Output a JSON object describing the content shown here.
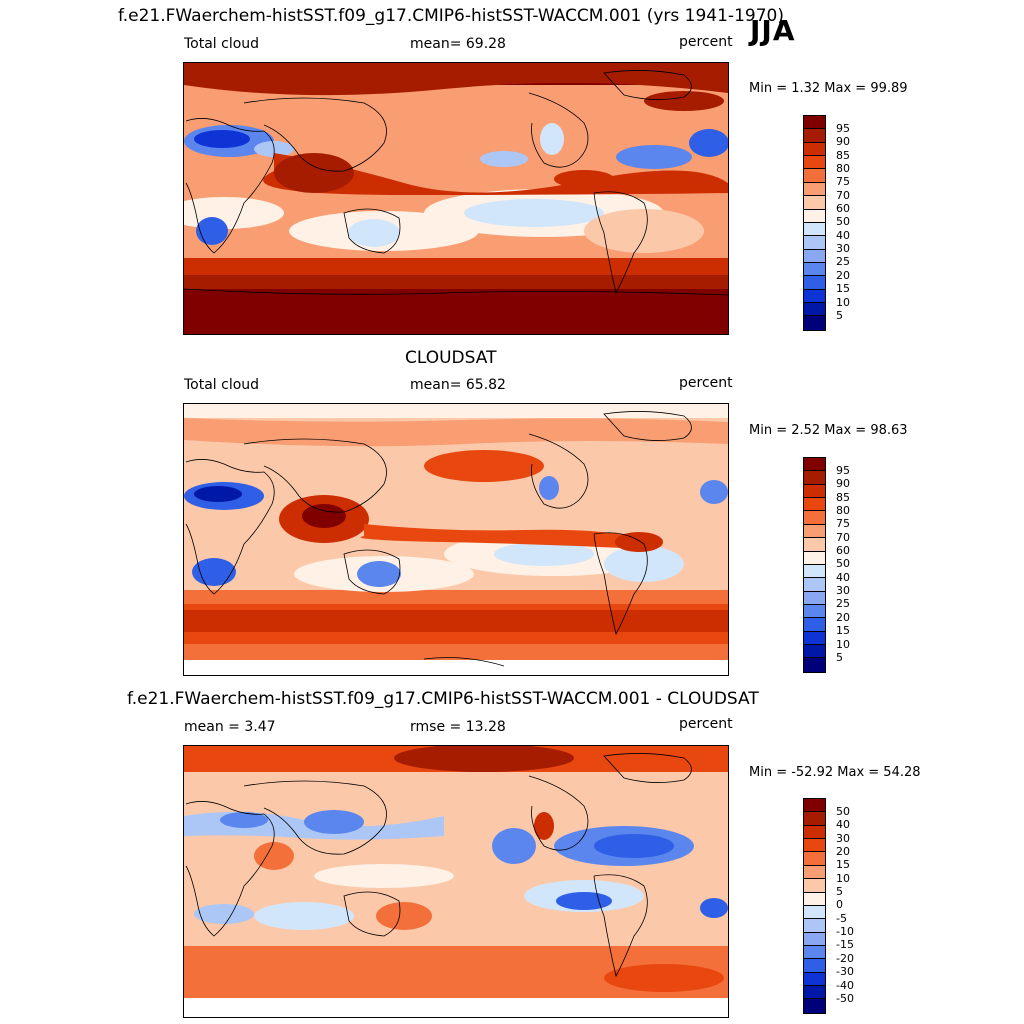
{
  "season": "JJA",
  "panels": [
    {
      "id": "model",
      "title": "f.e21.FWaerchem-histSST.f09_g17.CMIP6-histSST-WACCM.001 (yrs 1941-1970)",
      "left_label": "Total cloud",
      "center_label": "mean=  69.28",
      "units": "percent",
      "minmax": "Min =   1.32 Max =  99.89",
      "levels": [
        "95",
        "90",
        "85",
        "80",
        "75",
        "70",
        "60",
        "50",
        "40",
        "30",
        "25",
        "20",
        "15",
        "10",
        "5"
      ],
      "colors": [
        "#800000",
        "#a61c00",
        "#cc2e02",
        "#e8480f",
        "#f4703a",
        "#f99d73",
        "#fbc8a9",
        "#fff1e6",
        "#d1e6fb",
        "#acc7f6",
        "#8aa8f2",
        "#5b86ee",
        "#2f5fe6",
        "#0f34d6",
        "#0018a8",
        "#00007a"
      ]
    },
    {
      "id": "obs",
      "title": "CLOUDSAT",
      "left_label": "Total cloud",
      "center_label": "mean=  65.82",
      "units": "percent",
      "minmax": "Min =   2.52 Max =  98.63",
      "levels": [
        "95",
        "90",
        "85",
        "80",
        "75",
        "70",
        "60",
        "50",
        "40",
        "30",
        "25",
        "20",
        "15",
        "10",
        "5"
      ],
      "colors": [
        "#800000",
        "#a61c00",
        "#cc2e02",
        "#e8480f",
        "#f4703a",
        "#f99d73",
        "#fbc8a9",
        "#fff1e6",
        "#d1e6fb",
        "#acc7f6",
        "#8aa8f2",
        "#5b86ee",
        "#2f5fe6",
        "#0f34d6",
        "#0018a8",
        "#00007a"
      ]
    },
    {
      "id": "diff",
      "title": "f.e21.FWaerchem-histSST.f09_g17.CMIP6-histSST-WACCM.001 - CLOUDSAT",
      "left_label": "mean =   3.47",
      "center_label": "rmse =  13.28",
      "units": "percent",
      "minmax": "Min = -52.92 Max =  54.28",
      "levels": [
        "50",
        "40",
        "30",
        "20",
        "15",
        "10",
        "5",
        "0",
        "-5",
        "-10",
        "-15",
        "-20",
        "-30",
        "-40",
        "-50"
      ],
      "colors": [
        "#800000",
        "#a61c00",
        "#cc2e02",
        "#e8480f",
        "#f4703a",
        "#f99d73",
        "#fbc8a9",
        "#fff1e6",
        "#d1e6fb",
        "#acc7f6",
        "#8aa8f2",
        "#5b86ee",
        "#2f5fe6",
        "#0f34d6",
        "#0018a8",
        "#00007a"
      ]
    }
  ]
}
